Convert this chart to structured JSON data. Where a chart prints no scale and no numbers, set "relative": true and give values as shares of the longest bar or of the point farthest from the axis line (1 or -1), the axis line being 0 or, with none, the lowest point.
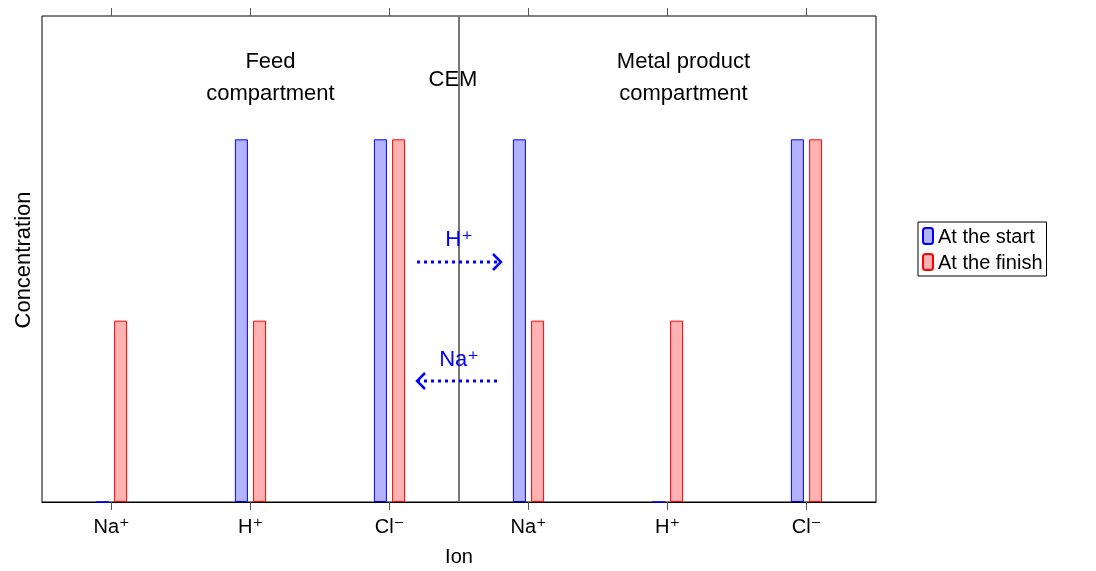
{
  "chart_data": {
    "type": "bar",
    "relative": true,
    "xlabel": "Ion",
    "ylabel": "Concentration",
    "categories": [
      "Na⁺",
      "H⁺",
      "Cl⁻",
      "Na⁺",
      "H⁺",
      "Cl⁻"
    ],
    "series": [
      {
        "name": "At the start",
        "color": "#0000ff",
        "values": [
          0,
          1,
          1,
          1,
          0,
          1
        ]
      },
      {
        "name": "At the finish",
        "color": "#ff0000",
        "values": [
          0.5,
          0.5,
          1,
          0.5,
          0.5,
          1
        ]
      }
    ],
    "annotations": [
      "Feed compartment",
      "CEM",
      "Metal product compartment",
      "H⁺",
      "Na⁺"
    ],
    "legend": "right",
    "grid": false
  }
}
